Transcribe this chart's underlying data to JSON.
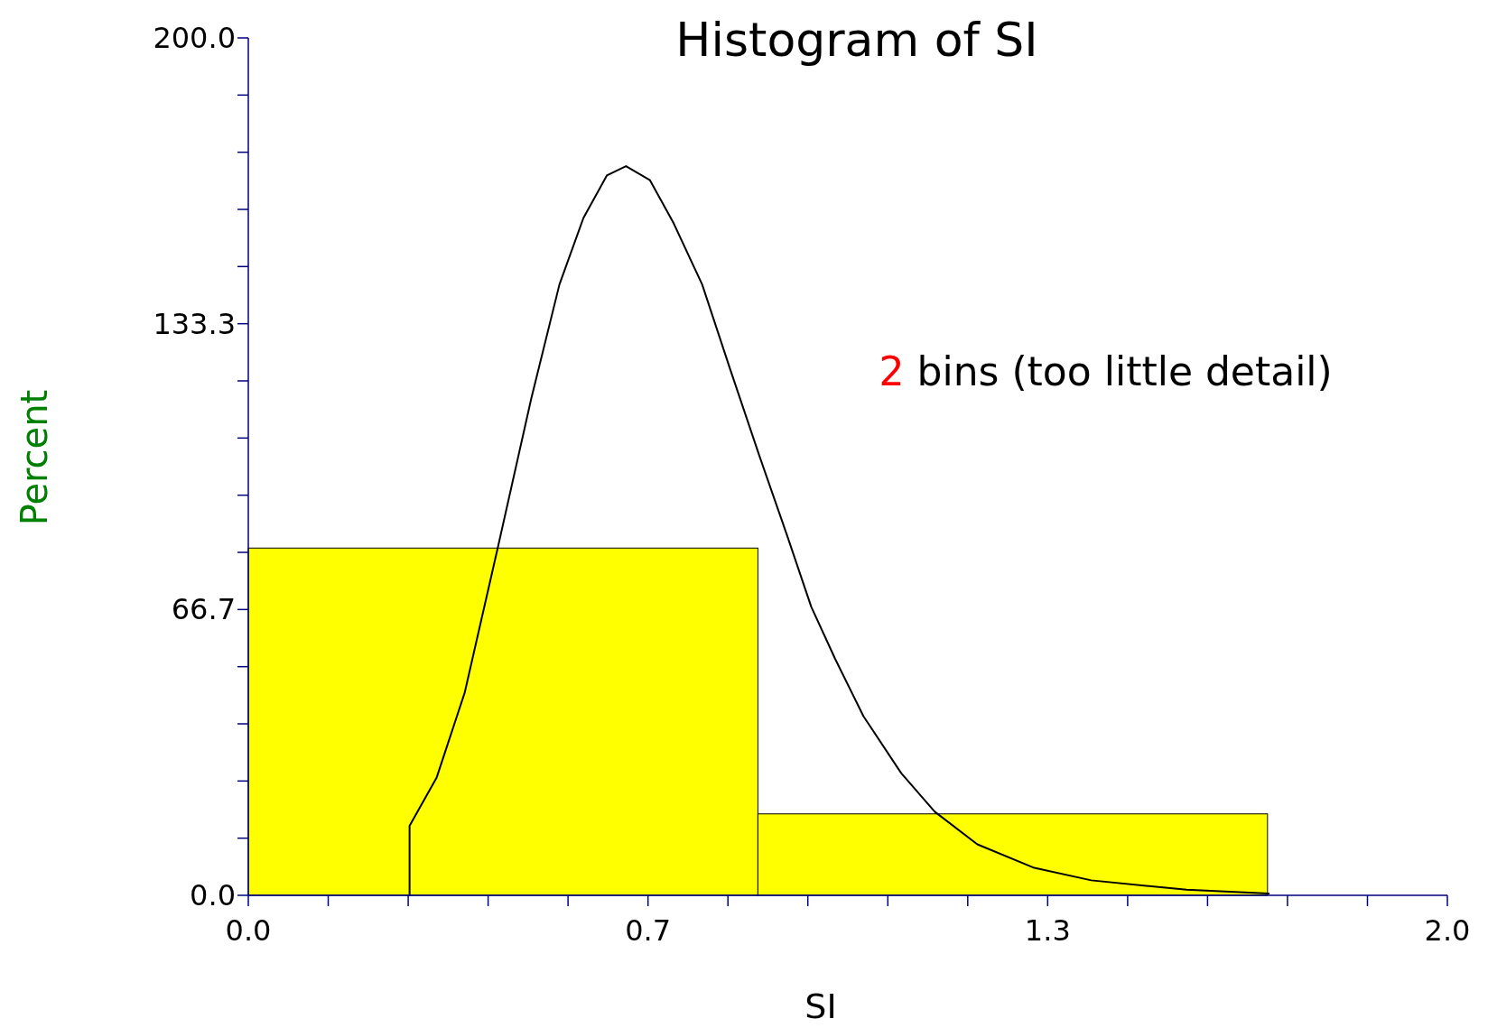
{
  "chart_data": {
    "type": "histogram",
    "title": "Histogram of SI",
    "xlabel": "SI",
    "ylabel": "Percent",
    "annotations": [
      "2 bins (too little detail)"
    ],
    "bins": [
      0,
      0.85,
      1.7
    ],
    "values": [
      81,
      19
    ],
    "color": "#ffff00",
    "series": [
      {
        "type": "line",
        "color": "#000000",
        "x": [
          0.269,
          0.269,
          0.314,
          0.361,
          0.416,
          0.472,
          0.519,
          0.559,
          0.598,
          0.63,
          0.67,
          0.709,
          0.757,
          0.804,
          0.852,
          0.899,
          0.939,
          0.979,
          1.026,
          1.089,
          1.145,
          1.216,
          1.311,
          1.406,
          1.565,
          1.702
        ],
        "values": [
          0,
          16.2,
          27.4,
          47.3,
          81,
          115.9,
          142.5,
          158,
          167.9,
          170.1,
          166.8,
          156.9,
          142.5,
          122.6,
          102.7,
          83.8,
          67.3,
          55.1,
          41.8,
          28.5,
          19.5,
          11.9,
          6.4,
          3.5,
          1.3,
          0.4
        ]
      }
    ],
    "xlim": [
      0,
      2
    ],
    "ylim": [
      0,
      200
    ],
    "xticks": [
      {
        "value": 0,
        "label": "0.0"
      },
      {
        "value": 0.1333,
        "label": null
      },
      {
        "value": 0.2667,
        "label": null
      },
      {
        "value": 0.4,
        "label": null
      },
      {
        "value": 0.5333,
        "label": null
      },
      {
        "value": 0.6667,
        "label": "0.7"
      },
      {
        "value": 0.8,
        "label": null
      },
      {
        "value": 0.9333,
        "label": null
      },
      {
        "value": 1.0667,
        "label": null
      },
      {
        "value": 1.2,
        "label": null
      },
      {
        "value": 1.3333,
        "label": "1.3"
      },
      {
        "value": 1.4667,
        "label": null
      },
      {
        "value": 1.6,
        "label": null
      },
      {
        "value": 1.7333,
        "label": null
      },
      {
        "value": 1.8667,
        "label": null
      },
      {
        "value": 2,
        "label": "2.0"
      }
    ],
    "yticks": [
      {
        "value": 0,
        "label": "0.0"
      },
      {
        "value": 13.333,
        "label": null
      },
      {
        "value": 26.667,
        "label": null
      },
      {
        "value": 40,
        "label": null
      },
      {
        "value": 53.333,
        "label": null
      },
      {
        "value": 66.667,
        "label": "66.7"
      },
      {
        "value": 80,
        "label": null
      },
      {
        "value": 93.333,
        "label": null
      },
      {
        "value": 106.667,
        "label": null
      },
      {
        "value": 120,
        "label": null
      },
      {
        "value": 133.333,
        "label": "133.3"
      },
      {
        "value": 146.667,
        "label": null
      },
      {
        "value": 160,
        "label": null
      },
      {
        "value": 173.333,
        "label": null
      },
      {
        "value": 186.667,
        "label": null
      },
      {
        "value": 200,
        "label": "200.0"
      }
    ]
  }
}
